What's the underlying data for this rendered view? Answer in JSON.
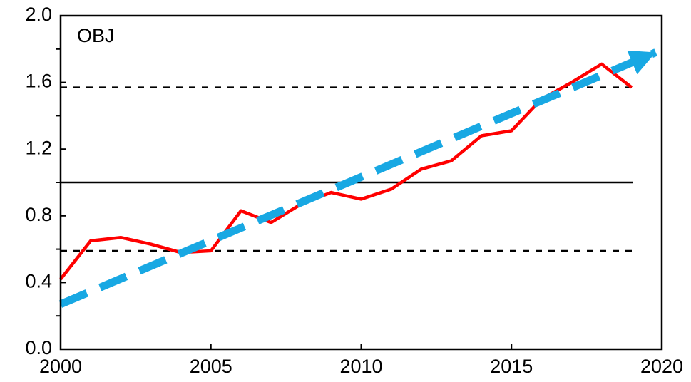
{
  "chart_data": {
    "type": "line",
    "annotation": "OBJ",
    "x": [
      2000,
      2001,
      2002,
      2003,
      2004,
      2005,
      2006,
      2007,
      2008,
      2009,
      2010,
      2011,
      2012,
      2013,
      2014,
      2015,
      2016,
      2017,
      2018,
      2019
    ],
    "values": [
      0.42,
      0.65,
      0.67,
      0.63,
      0.58,
      0.59,
      0.83,
      0.76,
      0.87,
      0.94,
      0.9,
      0.96,
      1.08,
      1.13,
      1.28,
      1.31,
      1.5,
      1.6,
      1.71,
      1.57
    ],
    "color": "#ff0000",
    "xlim": [
      2000,
      2020
    ],
    "xticks": [
      2000,
      2005,
      2010,
      2015,
      2020
    ],
    "ylim": [
      0,
      2
    ],
    "yticks": [
      {
        "value": 0,
        "label": "0.0"
      },
      0.4,
      0.8,
      1.2,
      1.6,
      {
        "value": 2,
        "label": "2.0"
      }
    ],
    "yminor": [
      0.2,
      0.6,
      1.0,
      1.4,
      1.8
    ],
    "grid": false,
    "hlines": [
      {
        "value": 1.0,
        "dashed": false,
        "color": "#000000"
      },
      {
        "value": 1.57,
        "dashed": true,
        "color": "#000000"
      },
      {
        "value": 0.59,
        "dashed": true,
        "color": "#000000"
      }
    ],
    "trend": {
      "x": [
        2000,
        2019.8
      ],
      "values": [
        0.27,
        1.78
      ],
      "color": "#18a8e3"
    }
  }
}
